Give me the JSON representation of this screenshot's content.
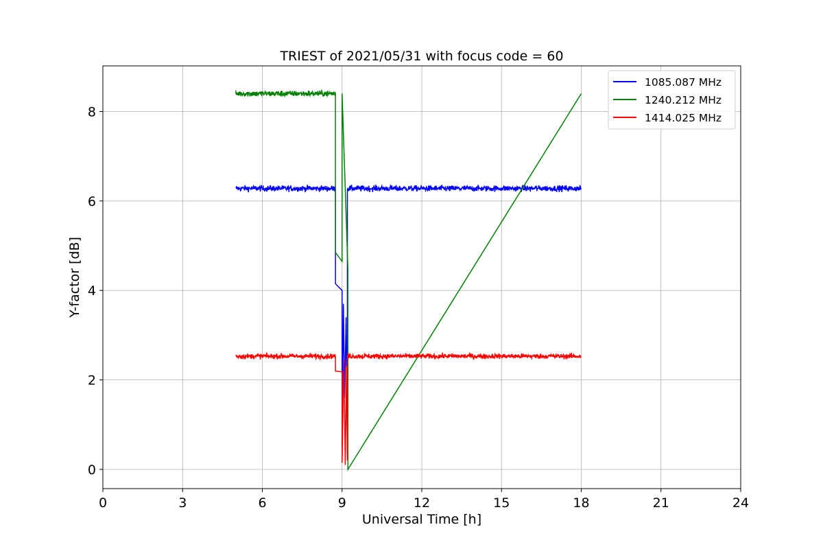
{
  "chart_data": {
    "type": "line",
    "title": "TRIEST of 2021/05/31 with focus code = 60",
    "xlabel": "Universal Time [h]",
    "ylabel": "Y-factor [dB]",
    "xlim": [
      0,
      24
    ],
    "ylim": [
      -0.43,
      9.02
    ],
    "xticks": [
      0,
      3,
      6,
      9,
      12,
      15,
      18,
      21,
      24
    ],
    "yticks": [
      0,
      2,
      4,
      6,
      8
    ],
    "grid": true,
    "legend_position": "top-right",
    "series": [
      {
        "name": "1085.087 MHz",
        "color": "#0000ff",
        "base_level": 6.28,
        "noise": 0.07,
        "x": [
          5.0,
          8.75,
          8.75,
          9.0,
          9.0,
          9.05,
          9.1,
          9.15,
          9.2,
          9.2,
          18.0
        ],
        "y": [
          6.28,
          6.28,
          4.15,
          4.0,
          0.5,
          3.7,
          1.6,
          3.4,
          0.3,
          6.28,
          6.28
        ]
      },
      {
        "name": "1240.212 MHz",
        "color": "#008000",
        "base_level": 8.4,
        "noise": 0.07,
        "x": [
          5.0,
          8.75,
          8.75,
          9.0,
          9.0,
          9.22,
          9.22,
          18.0
        ],
        "y": [
          8.4,
          8.4,
          4.85,
          4.65,
          8.4,
          4.47,
          0.0,
          8.4
        ]
      },
      {
        "name": "1414.025 MHz",
        "color": "#ff0000",
        "base_level": 2.53,
        "noise": 0.06,
        "x": [
          5.0,
          8.75,
          8.75,
          9.0,
          9.0,
          9.07,
          9.12,
          9.17,
          9.2,
          9.2,
          18.0
        ],
        "y": [
          2.53,
          2.53,
          2.2,
          2.18,
          0.15,
          2.45,
          0.1,
          2.3,
          0.2,
          2.53,
          2.53
        ]
      }
    ]
  }
}
